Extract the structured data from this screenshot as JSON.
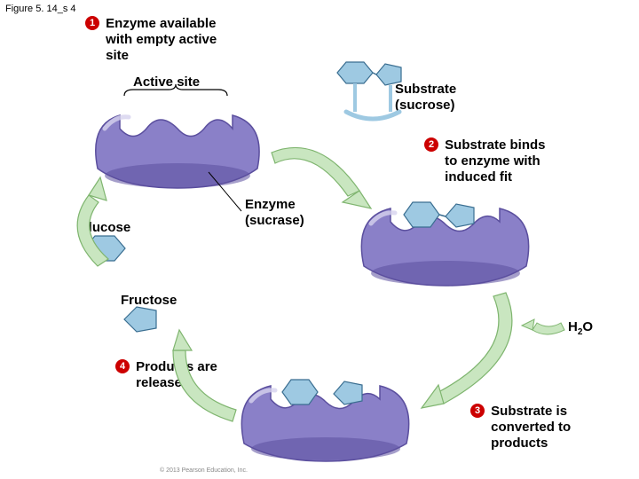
{
  "figure_title": "Figure 5. 14_s 4",
  "steps": {
    "1": {
      "num": "1",
      "text": "Enzyme available\nwith empty active\nsite"
    },
    "2": {
      "num": "2",
      "text": "Substrate binds\nto enzyme with\ninduced fit"
    },
    "3": {
      "num": "3",
      "text": "Substrate is\nconverted to\nproducts"
    },
    "4": {
      "num": "4",
      "text": "Products are\nreleased"
    }
  },
  "labels": {
    "active_site": "Active site",
    "substrate": "Substrate\n(sucrose)",
    "enzyme": "Enzyme\n(sucrase)",
    "glucose": "Glucose",
    "fructose": "Fructose",
    "h2o": "H₂O"
  },
  "copyright": "© 2013 Pearson Education, Inc.",
  "colors": {
    "enzyme_fill": "#8a80c8",
    "enzyme_dark": "#5b4f9e",
    "enzyme_shine": "#d6d2ee",
    "sugar_fill": "#9ec9e2",
    "sugar_stroke": "#3a6e91",
    "arrow_fill": "#c9e6c0",
    "arrow_stroke": "#7fb56f",
    "badge": "#cc0000",
    "line": "#000000"
  }
}
